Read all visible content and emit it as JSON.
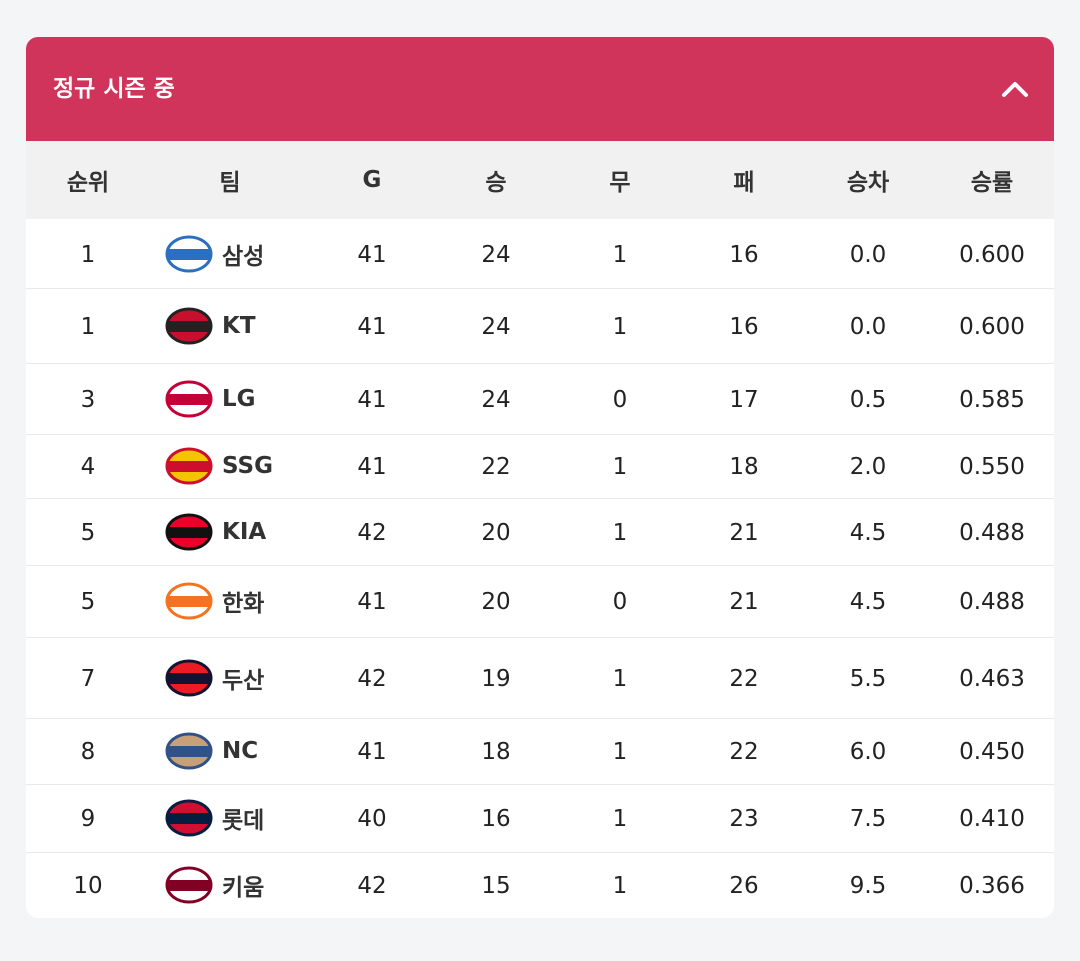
{
  "header": {
    "title": "정규 시즌 중"
  },
  "table": {
    "columns": [
      "순위",
      "팀",
      "G",
      "승",
      "무",
      "패",
      "승차",
      "승률"
    ],
    "rows": [
      [
        "1",
        "삼성",
        "41",
        "24",
        "1",
        "16",
        "0.0",
        "0.600"
      ],
      [
        "1",
        "KT",
        "41",
        "24",
        "1",
        "16",
        "0.0",
        "0.600"
      ],
      [
        "3",
        "LG",
        "41",
        "24",
        "0",
        "17",
        "0.5",
        "0.585"
      ],
      [
        "4",
        "SSG",
        "41",
        "22",
        "1",
        "18",
        "2.0",
        "0.550"
      ],
      [
        "5",
        "KIA",
        "42",
        "20",
        "1",
        "21",
        "4.5",
        "0.488"
      ],
      [
        "5",
        "한화",
        "41",
        "20",
        "0",
        "21",
        "4.5",
        "0.488"
      ],
      [
        "7",
        "두산",
        "42",
        "19",
        "1",
        "22",
        "5.5",
        "0.463"
      ],
      [
        "8",
        "NC",
        "41",
        "18",
        "1",
        "22",
        "6.0",
        "0.450"
      ],
      [
        "9",
        "롯데",
        "40",
        "16",
        "1",
        "23",
        "7.5",
        "0.410"
      ],
      [
        "10",
        "키움",
        "42",
        "15",
        "1",
        "26",
        "9.5",
        "0.366"
      ]
    ]
  }
}
